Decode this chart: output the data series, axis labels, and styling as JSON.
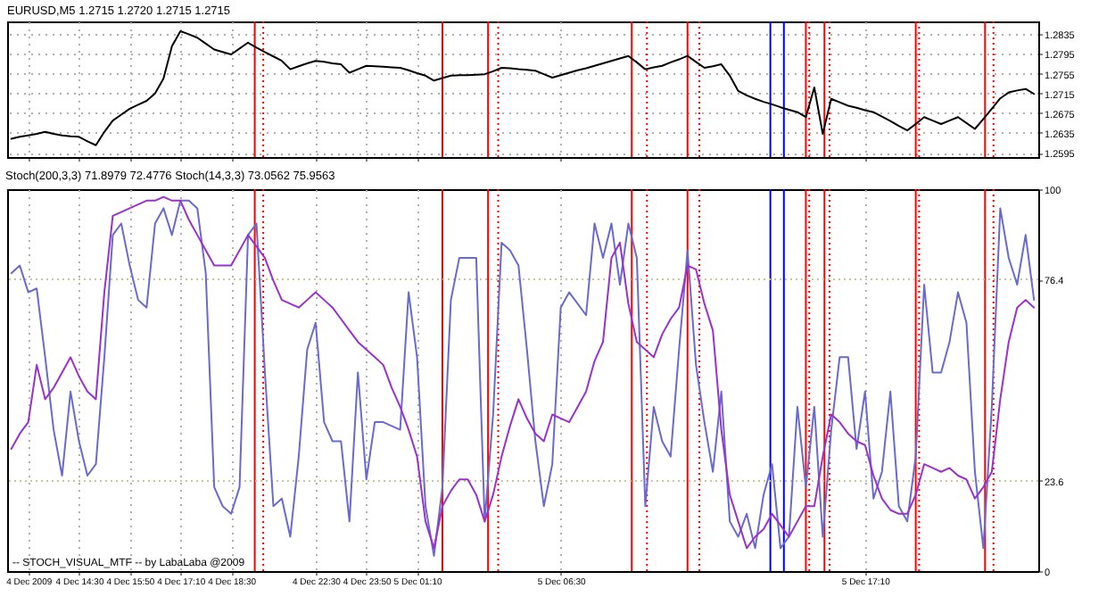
{
  "chart_data": [
    {
      "type": "line",
      "title": "EURUSD,M5 1.2715 1.2720 1.2715 1.2715",
      "ylim": [
        1.2586,
        1.2861
      ],
      "categories": [
        null,
        null,
        "4 Dec 2009",
        null,
        null,
        null,
        null,
        null,
        "4 Dec 14:30",
        null,
        null,
        null,
        null,
        null,
        "4 Dec 15:50",
        null,
        null,
        null,
        null,
        null,
        "4 Dec 17:10",
        null,
        null,
        null,
        null,
        null,
        "4 Dec 18:30",
        null,
        null,
        null,
        null,
        null,
        null,
        null,
        null,
        null,
        "4 Dec 22:30",
        null,
        null,
        null,
        null,
        null,
        "4 Dec 23:50",
        null,
        null,
        null,
        null,
        null,
        "5 Dec 01:10",
        null,
        null,
        null,
        null,
        null,
        null,
        null,
        null,
        null,
        null,
        null,
        null,
        null,
        null,
        null,
        null,
        "5 Dec 06:30",
        null,
        null,
        null,
        null,
        null,
        null,
        null,
        null,
        null,
        null,
        null,
        null,
        null,
        null,
        null,
        null,
        null,
        null,
        null,
        null,
        null,
        null,
        null,
        null,
        null,
        null,
        null,
        null,
        null,
        null,
        null,
        null,
        null,
        null,
        null,
        "5 Dec 17:10",
        null,
        null,
        null,
        null,
        null,
        null,
        null,
        null,
        null,
        null,
        null,
        null,
        null,
        null,
        null,
        null,
        null,
        null,
        null,
        null
      ],
      "yticks": [
        1.2595,
        1.2635,
        1.2675,
        1.2715,
        1.2755,
        1.2795,
        1.2835
      ],
      "tick_labels": "y",
      "grid": true,
      "series": [
        {
          "color": "#000000",
          "values": [
            1.2623,
            1.2627,
            1.263,
            1.2633,
            1.2637,
            1.2633,
            1.263,
            1.2628,
            1.2627,
            1.2618,
            1.261,
            1.2637,
            1.266,
            1.2672,
            1.2684,
            1.2692,
            1.27,
            1.2715,
            1.2745,
            1.2811,
            1.2841,
            1.2835,
            1.2828,
            1.2816,
            1.2804,
            1.2799,
            1.2794,
            1.2806,
            1.2818,
            1.2808,
            1.2799,
            1.279,
            1.2781,
            1.2764,
            1.277,
            1.2776,
            1.2781,
            1.2779,
            1.2776,
            1.2774,
            1.2757,
            1.2764,
            1.2771,
            1.277,
            1.2769,
            1.2768,
            1.2767,
            1.2762,
            1.2756,
            1.2751,
            1.2741,
            1.2746,
            1.2751,
            1.2752,
            1.2752,
            1.2753,
            1.2754,
            1.276,
            1.2767,
            1.2766,
            1.2764,
            1.2763,
            1.2761,
            1.2754,
            1.2747,
            1.2752,
            1.2757,
            1.2762,
            1.2766,
            1.2771,
            1.2776,
            1.2781,
            1.2786,
            1.2791,
            1.2778,
            1.2764,
            1.2768,
            1.2771,
            1.2778,
            1.2784,
            1.2791,
            1.2779,
            1.2767,
            1.277,
            1.2774,
            1.2751,
            1.272,
            1.2711,
            1.2704,
            1.2698,
            1.2693,
            1.2687,
            1.2682,
            1.2677,
            1.2667,
            1.2727,
            1.2633,
            1.2704,
            1.2697,
            1.269,
            1.2686,
            1.2681,
            1.2677,
            1.2668,
            1.2659,
            1.2649,
            1.264,
            1.2653,
            1.2667,
            1.266,
            1.2653,
            1.266,
            1.2667,
            1.2655,
            1.2643,
            1.2663,
            1.2684,
            1.2705,
            1.2717,
            1.2721,
            1.2724,
            1.2714
          ]
        }
      ]
    },
    {
      "type": "line",
      "title": "Stoch(200,3,3) 71.8979 72.4776 Stoch(14,3,3) 73.0562 75.9563",
      "ylim": [
        0,
        100
      ],
      "categories": [
        null,
        null,
        "4 Dec 2009",
        null,
        null,
        null,
        null,
        null,
        "4 Dec 14:30",
        null,
        null,
        null,
        null,
        null,
        "4 Dec 15:50",
        null,
        null,
        null,
        null,
        null,
        "4 Dec 17:10",
        null,
        null,
        null,
        null,
        null,
        "4 Dec 18:30",
        null,
        null,
        null,
        null,
        null,
        null,
        null,
        null,
        null,
        "4 Dec 22:30",
        null,
        null,
        null,
        null,
        null,
        "4 Dec 23:50",
        null,
        null,
        null,
        null,
        null,
        "5 Dec 01:10",
        null,
        null,
        null,
        null,
        null,
        null,
        null,
        null,
        null,
        null,
        null,
        null,
        null,
        null,
        null,
        null,
        "5 Dec 06:30",
        null,
        null,
        null,
        null,
        null,
        null,
        null,
        null,
        null,
        null,
        null,
        null,
        null,
        null,
        null,
        null,
        null,
        null,
        null,
        null,
        null,
        null,
        null,
        null,
        null,
        null,
        null,
        null,
        null,
        null,
        null,
        null,
        null,
        null,
        null,
        "5 Dec 17:10",
        null,
        null,
        null,
        null,
        null,
        null,
        null,
        null,
        null,
        null,
        null,
        null,
        null,
        null,
        null,
        null,
        null,
        null,
        null,
        null
      ],
      "yticks": [
        0,
        23.6,
        76.4,
        100
      ],
      "grid": "x",
      "annotations": [
        "-- STOCH_VISUAL_MTF -- by LabaLaba @2009"
      ],
      "series": [
        {
          "color": "#6a6acd",
          "values": [
            78,
            80,
            73,
            74,
            56,
            37,
            25,
            47,
            34,
            25,
            28,
            56,
            88,
            91,
            80,
            71,
            69,
            91,
            95,
            88,
            97,
            97,
            95,
            78,
            22,
            17,
            15,
            22,
            88,
            91,
            52,
            17,
            19,
            9,
            30,
            58,
            65,
            39,
            34,
            34,
            13,
            52,
            24,
            39,
            39,
            38,
            37,
            73,
            56,
            17,
            4,
            22,
            71,
            82,
            82,
            82,
            13,
            41,
            86,
            84,
            80,
            58,
            34,
            17,
            28,
            69,
            73,
            70,
            67,
            91,
            82,
            91,
            75,
            91,
            82,
            17,
            43,
            34,
            30,
            58,
            84,
            54,
            39,
            26,
            47,
            13,
            9,
            15,
            6,
            20,
            28,
            6,
            9,
            43,
            22,
            43,
            9,
            37,
            56,
            56,
            32,
            47,
            19,
            26,
            47,
            17,
            13,
            30,
            75,
            52,
            52,
            60,
            73,
            65,
            26,
            6,
            43,
            95,
            82,
            75,
            88,
            71
          ]
        },
        {
          "color": "#9932cc",
          "values": [
            32,
            36,
            39,
            54,
            45,
            48,
            52,
            56,
            51,
            47,
            45,
            73,
            93,
            94,
            95,
            96,
            97,
            97,
            98,
            97,
            97,
            92,
            88,
            84,
            80,
            80,
            80,
            84,
            88,
            85,
            82,
            76,
            71,
            70,
            69,
            71,
            73,
            71,
            69,
            66,
            63,
            60,
            58,
            56,
            54,
            48,
            43,
            37,
            30,
            13,
            6,
            17,
            21,
            24,
            24,
            20,
            13,
            20,
            30,
            38,
            45,
            40,
            36,
            34,
            41,
            40,
            39,
            43,
            47,
            55,
            60,
            82,
            86,
            70,
            60,
            58,
            56,
            62,
            66,
            69,
            80,
            79,
            70,
            63,
            37,
            20,
            13,
            6,
            9,
            11,
            15,
            12,
            9,
            13,
            17,
            17,
            30,
            41,
            39,
            36,
            34,
            33,
            25,
            19,
            16,
            15,
            15,
            20,
            28,
            27,
            26,
            27,
            25,
            24,
            19,
            22,
            26,
            45,
            60,
            69,
            71,
            69
          ]
        }
      ],
      "ref_lines": [
        {
          "axis": "y",
          "value": 76.4,
          "color": "#c8c896",
          "line_style": "dotted"
        },
        {
          "axis": "y",
          "value": 23.6,
          "color": "#c8c896",
          "line_style": "dotted"
        }
      ]
    }
  ]
}
